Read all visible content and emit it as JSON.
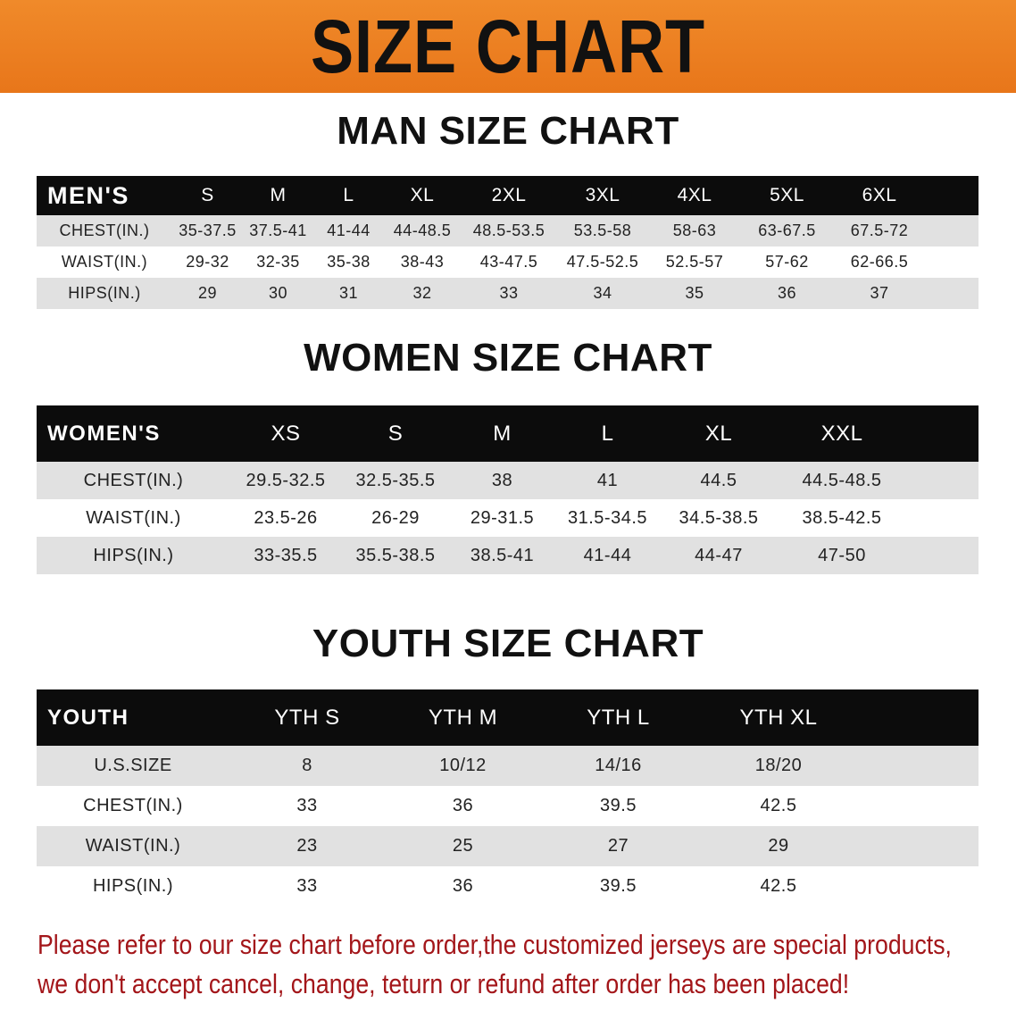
{
  "banner_title": "SIZE CHART",
  "colors": {
    "banner": "#e8761a",
    "header_row": "#0c0c0c",
    "stripe": "#e1e1e1",
    "notice": "#a3161a"
  },
  "men": {
    "title": "MAN SIZE CHART",
    "header": [
      "MEN'S",
      "S",
      "M",
      "L",
      "XL",
      "2XL",
      "3XL",
      "4XL",
      "5XL",
      "6XL"
    ],
    "rows": [
      [
        "CHEST(IN.)",
        "35-37.5",
        "37.5-41",
        "41-44",
        "44-48.5",
        "48.5-53.5",
        "53.5-58",
        "58-63",
        "63-67.5",
        "67.5-72"
      ],
      [
        "WAIST(IN.)",
        "29-32",
        "32-35",
        "35-38",
        "38-43",
        "43-47.5",
        "47.5-52.5",
        "52.5-57",
        "57-62",
        "62-66.5"
      ],
      [
        "HIPS(IN.)",
        "29",
        "30",
        "31",
        "32",
        "33",
        "34",
        "35",
        "36",
        "37"
      ]
    ]
  },
  "women": {
    "title": "WOMEN SIZE CHART",
    "header": [
      "WOMEN'S",
      "XS",
      "S",
      "M",
      "L",
      "XL",
      "XXL"
    ],
    "rows": [
      [
        "CHEST(IN.)",
        "29.5-32.5",
        "32.5-35.5",
        "38",
        "41",
        "44.5",
        "44.5-48.5"
      ],
      [
        "WAIST(IN.)",
        "23.5-26",
        "26-29",
        "29-31.5",
        "31.5-34.5",
        "34.5-38.5",
        "38.5-42.5"
      ],
      [
        "HIPS(IN.)",
        "33-35.5",
        "35.5-38.5",
        "38.5-41",
        "41-44",
        "44-47",
        "47-50"
      ]
    ]
  },
  "youth": {
    "title": "YOUTH SIZE CHART",
    "header": [
      "YOUTH",
      "YTH S",
      "YTH M",
      "YTH L",
      "YTH XL"
    ],
    "rows": [
      [
        "U.S.SIZE",
        "8",
        "10/12",
        "14/16",
        "18/20"
      ],
      [
        "CHEST(IN.)",
        "33",
        "36",
        "39.5",
        "42.5"
      ],
      [
        "WAIST(IN.)",
        "23",
        "25",
        "27",
        "29"
      ],
      [
        "HIPS(IN.)",
        "33",
        "36",
        "39.5",
        "42.5"
      ]
    ]
  },
  "notice": {
    "line1": "Please refer to our size chart before order,the customized jerseys are special products,",
    "line2": "we don't accept cancel, change, teturn or refund after order has been placed!"
  }
}
